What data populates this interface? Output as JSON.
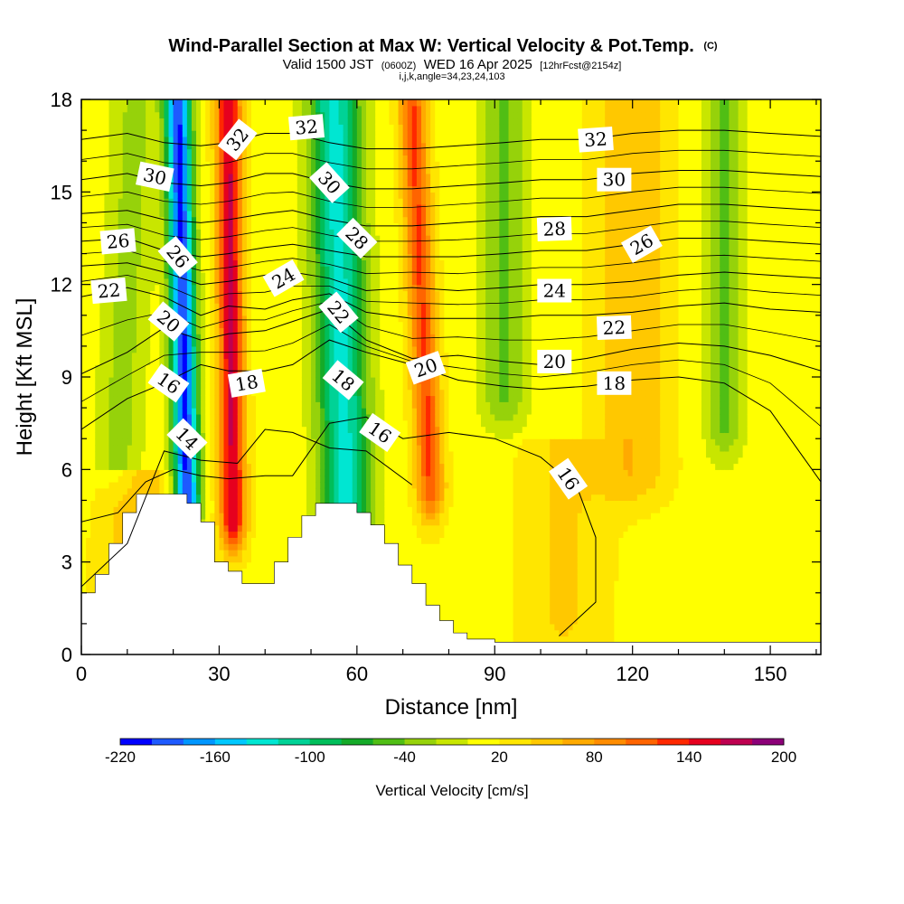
{
  "chart_data": {
    "type": "heatmap",
    "title": "Wind-Parallel Section at Max W: Vertical Velocity & Pot.Temp.",
    "title_suffix": "(C)",
    "subtitle": {
      "valid_prefix": "Valid 1500 JST",
      "utc": "(0600Z)",
      "date": "WED 16 Apr 2025",
      "forecast": "[12hrFcst@2154z]"
    },
    "subtitle2": "i,j,k,angle=34,23,24,103",
    "xlabel": "Distance [nm]",
    "ylabel": "Height [Kft MSL]",
    "xlim": [
      0,
      161
    ],
    "ylim": [
      0,
      18
    ],
    "x_ticks": [
      0,
      30,
      60,
      90,
      120,
      150
    ],
    "y_ticks": [
      0,
      3,
      6,
      9,
      12,
      15,
      18
    ],
    "colorbar": {
      "label": "Vertical Velocity [cm/s]",
      "range": [
        -220,
        200
      ],
      "step": 20,
      "tick_values": [
        -220,
        -160,
        -100,
        -40,
        20,
        80,
        140,
        200
      ],
      "tick_labels": [
        "-220",
        "-160",
        "-100",
        "-40",
        "20",
        "80",
        "140",
        "200"
      ],
      "colors": [
        "#0000ff",
        "#1e5aff",
        "#0096ff",
        "#00c8ff",
        "#00e6d2",
        "#00d296",
        "#00be5a",
        "#14aa28",
        "#50be14",
        "#96d20a",
        "#c8e600",
        "#ffff00",
        "#ffe600",
        "#ffc800",
        "#ffaa00",
        "#ff8c00",
        "#ff6400",
        "#ff2800",
        "#e6001e",
        "#be0050",
        "#8c0078"
      ]
    },
    "velocity_features": [
      {
        "x": 23,
        "x_top": 21,
        "z_bottom": 5.0,
        "z_top": 18,
        "w_peak": -215,
        "halfwidth": 2.8
      },
      {
        "x": 33,
        "x_top": 32,
        "z_bottom": 4.5,
        "z_top": 18,
        "w_peak": 150,
        "halfwidth": 2.8
      },
      {
        "x": 58,
        "x_top": 55,
        "z_bottom": 3.0,
        "z_top": 18,
        "w_peak": -140,
        "halfwidth": 5.5
      },
      {
        "x": 76,
        "x_top": 72,
        "z_bottom": 5.5,
        "z_top": 18,
        "w_peak": 110,
        "halfwidth": 3.0
      },
      {
        "x": 92,
        "x_top": 92,
        "z_bottom": 8.5,
        "z_top": 18,
        "w_peak": -55,
        "halfwidth": 5.0
      },
      {
        "x": 140,
        "x_top": 140,
        "z_bottom": 7.5,
        "z_top": 18,
        "w_peak": -55,
        "halfwidth": 4.0
      },
      {
        "x": 8,
        "x_top": 12,
        "z_bottom": 6.5,
        "z_top": 18,
        "w_peak": -40,
        "halfwidth": 5.0
      },
      {
        "x": 120,
        "x_top": 120,
        "z_bottom": 6.0,
        "z_top": 18,
        "w_peak": 45,
        "halfwidth": 8.0
      },
      {
        "x": 105,
        "x_top": 105,
        "z_bottom": 1.0,
        "z_top": 7.0,
        "w_peak": 30,
        "halfwidth": 10.0
      },
      {
        "x": 12,
        "x_top": 12,
        "z_bottom": 2.0,
        "z_top": 6.0,
        "w_peak": 45,
        "halfwidth": 8.0
      }
    ],
    "terrain": [
      {
        "x": 0,
        "z": 2.0
      },
      {
        "x": 3,
        "z": 2.6
      },
      {
        "x": 6,
        "z": 3.6
      },
      {
        "x": 9,
        "z": 4.6
      },
      {
        "x": 12,
        "z": 5.2
      },
      {
        "x": 15,
        "z": 5.2
      },
      {
        "x": 21,
        "z": 5.2
      },
      {
        "x": 23,
        "z": 4.9
      },
      {
        "x": 26,
        "z": 4.3
      },
      {
        "x": 29,
        "z": 3.0
      },
      {
        "x": 32,
        "z": 2.7
      },
      {
        "x": 35,
        "z": 2.3
      },
      {
        "x": 40,
        "z": 2.3
      },
      {
        "x": 42,
        "z": 3.0
      },
      {
        "x": 45,
        "z": 3.8
      },
      {
        "x": 48,
        "z": 4.5
      },
      {
        "x": 51,
        "z": 4.9
      },
      {
        "x": 57,
        "z": 4.9
      },
      {
        "x": 60,
        "z": 4.6
      },
      {
        "x": 63,
        "z": 4.2
      },
      {
        "x": 66,
        "z": 3.6
      },
      {
        "x": 69,
        "z": 2.9
      },
      {
        "x": 72,
        "z": 2.3
      },
      {
        "x": 75,
        "z": 1.6
      },
      {
        "x": 78,
        "z": 1.1
      },
      {
        "x": 81,
        "z": 0.7
      },
      {
        "x": 84,
        "z": 0.5
      },
      {
        "x": 90,
        "z": 0.4
      },
      {
        "x": 161,
        "z": 0.4
      }
    ],
    "isentropes": [
      {
        "theta": 14,
        "points": [
          [
            0,
            2.2
          ],
          [
            10,
            3.6
          ],
          [
            18,
            6.6
          ],
          [
            26,
            6.3
          ],
          [
            34,
            6.2
          ],
          [
            40,
            7.3
          ],
          [
            46,
            7.2
          ],
          [
            54,
            6.7
          ],
          [
            62,
            6.6
          ],
          [
            72,
            5.5
          ]
        ]
      },
      {
        "theta": 16,
        "points": [
          [
            0,
            4.3
          ],
          [
            8,
            4.6
          ],
          [
            14,
            5.6
          ],
          [
            20,
            6.0
          ],
          [
            26,
            5.8
          ],
          [
            32,
            5.7
          ],
          [
            40,
            5.8
          ],
          [
            46,
            5.8
          ],
          [
            54,
            7.5
          ],
          [
            62,
            7.7
          ],
          [
            70,
            7.0
          ],
          [
            80,
            7.2
          ],
          [
            90,
            7.0
          ],
          [
            100,
            6.4
          ],
          [
            108,
            5.4
          ],
          [
            112,
            3.8
          ],
          [
            112,
            1.7
          ],
          [
            104,
            0.6
          ]
        ]
      },
      {
        "theta": 18,
        "points": [
          [
            0,
            7.3
          ],
          [
            10,
            8.3
          ],
          [
            18,
            8.8
          ],
          [
            26,
            9.4
          ],
          [
            32,
            9.2
          ],
          [
            40,
            9.2
          ],
          [
            46,
            9.4
          ],
          [
            54,
            10.2
          ],
          [
            62,
            9.8
          ],
          [
            72,
            9.4
          ],
          [
            82,
            8.9
          ],
          [
            92,
            8.7
          ],
          [
            100,
            8.6
          ],
          [
            110,
            8.7
          ],
          [
            120,
            8.9
          ],
          [
            130,
            9.0
          ],
          [
            140,
            8.8
          ],
          [
            150,
            7.9
          ],
          [
            161,
            5.6
          ]
        ]
      },
      {
        "theta": 20,
        "points": [
          [
            0,
            9.1
          ],
          [
            10,
            9.8
          ],
          [
            18,
            10.6
          ],
          [
            26,
            10.2
          ],
          [
            32,
            10.4
          ],
          [
            40,
            10.5
          ],
          [
            46,
            10.8
          ],
          [
            54,
            11.2
          ],
          [
            62,
            10.2
          ],
          [
            72,
            9.6
          ],
          [
            82,
            9.7
          ],
          [
            92,
            9.5
          ],
          [
            100,
            9.4
          ],
          [
            110,
            9.6
          ],
          [
            120,
            9.9
          ],
          [
            130,
            10.1
          ],
          [
            140,
            10.0
          ],
          [
            150,
            9.7
          ],
          [
            161,
            9.2
          ]
        ]
      },
      {
        "theta": 22,
        "points": [
          [
            0,
            11.6
          ],
          [
            10,
            11.9
          ],
          [
            18,
            11.6
          ],
          [
            26,
            11.0
          ],
          [
            32,
            11.3
          ],
          [
            40,
            11.2
          ],
          [
            46,
            11.5
          ],
          [
            54,
            11.7
          ],
          [
            62,
            11.1
          ],
          [
            72,
            10.9
          ],
          [
            82,
            10.9
          ],
          [
            92,
            10.9
          ],
          [
            100,
            11.0
          ],
          [
            110,
            11.0
          ],
          [
            120,
            11.1
          ],
          [
            130,
            11.3
          ],
          [
            140,
            11.4
          ],
          [
            150,
            11.2
          ],
          [
            161,
            11.1
          ]
        ]
      },
      {
        "theta": 24,
        "points": [
          [
            0,
            12.6
          ],
          [
            10,
            12.7
          ],
          [
            18,
            12.4
          ],
          [
            26,
            12.0
          ],
          [
            32,
            12.1
          ],
          [
            40,
            12.3
          ],
          [
            46,
            12.4
          ],
          [
            54,
            12.2
          ],
          [
            62,
            11.8
          ],
          [
            72,
            11.9
          ],
          [
            82,
            11.8
          ],
          [
            92,
            11.9
          ],
          [
            100,
            12.0
          ],
          [
            110,
            12.0
          ],
          [
            120,
            12.1
          ],
          [
            130,
            12.3
          ],
          [
            140,
            12.4
          ],
          [
            150,
            12.3
          ],
          [
            161,
            12.2
          ]
        ]
      },
      {
        "theta": 26,
        "points": [
          [
            0,
            13.4
          ],
          [
            10,
            13.5
          ],
          [
            18,
            13.1
          ],
          [
            26,
            12.9
          ],
          [
            32,
            13.0
          ],
          [
            40,
            13.2
          ],
          [
            46,
            13.3
          ],
          [
            54,
            13.1
          ],
          [
            62,
            12.9
          ],
          [
            72,
            12.9
          ],
          [
            82,
            12.9
          ],
          [
            92,
            13.0
          ],
          [
            100,
            13.1
          ],
          [
            110,
            13.1
          ],
          [
            120,
            13.3
          ],
          [
            130,
            13.5
          ],
          [
            140,
            13.5
          ],
          [
            150,
            13.4
          ],
          [
            161,
            13.3
          ]
        ]
      },
      {
        "theta": 28,
        "points": [
          [
            0,
            14.3
          ],
          [
            10,
            14.4
          ],
          [
            18,
            14.1
          ],
          [
            26,
            14.0
          ],
          [
            32,
            14.1
          ],
          [
            40,
            14.3
          ],
          [
            46,
            14.4
          ],
          [
            54,
            14.1
          ],
          [
            62,
            13.9
          ],
          [
            72,
            13.9
          ],
          [
            82,
            14.0
          ],
          [
            92,
            14.1
          ],
          [
            100,
            14.2
          ],
          [
            110,
            14.2
          ],
          [
            120,
            14.4
          ],
          [
            130,
            14.6
          ],
          [
            140,
            14.6
          ],
          [
            150,
            14.5
          ],
          [
            161,
            14.4
          ]
        ]
      },
      {
        "theta": 30,
        "points": [
          [
            0,
            15.4
          ],
          [
            10,
            15.6
          ],
          [
            18,
            15.3
          ],
          [
            26,
            15.2
          ],
          [
            32,
            15.3
          ],
          [
            40,
            15.6
          ],
          [
            46,
            15.6
          ],
          [
            54,
            15.3
          ],
          [
            62,
            15.1
          ],
          [
            72,
            15.1
          ],
          [
            82,
            15.2
          ],
          [
            92,
            15.3
          ],
          [
            100,
            15.4
          ],
          [
            110,
            15.4
          ],
          [
            120,
            15.6
          ],
          [
            130,
            15.7
          ],
          [
            140,
            15.7
          ],
          [
            150,
            15.6
          ],
          [
            161,
            15.5
          ]
        ]
      },
      {
        "theta": 32,
        "points": [
          [
            0,
            16.7
          ],
          [
            10,
            16.9
          ],
          [
            18,
            16.6
          ],
          [
            26,
            16.5
          ],
          [
            32,
            16.6
          ],
          [
            40,
            16.9
          ],
          [
            46,
            16.9
          ],
          [
            54,
            16.6
          ],
          [
            62,
            16.4
          ],
          [
            72,
            16.4
          ],
          [
            82,
            16.5
          ],
          [
            92,
            16.6
          ],
          [
            100,
            16.7
          ],
          [
            110,
            16.7
          ],
          [
            120,
            16.9
          ],
          [
            130,
            17.0
          ],
          [
            140,
            17.0
          ],
          [
            150,
            16.9
          ],
          [
            161,
            16.8
          ]
        ]
      }
    ],
    "contour_labels": [
      {
        "text": "32",
        "x": 34,
        "z": 16.7,
        "angle": -52
      },
      {
        "text": "32",
        "x": 49,
        "z": 17.1,
        "angle": -5
      },
      {
        "text": "32",
        "x": 112,
        "z": 16.7,
        "angle": -4
      },
      {
        "text": "30",
        "x": 16,
        "z": 15.5,
        "angle": 12
      },
      {
        "text": "30",
        "x": 54,
        "z": 15.3,
        "angle": 48
      },
      {
        "text": "30",
        "x": 116,
        "z": 15.4,
        "angle": 0
      },
      {
        "text": "28",
        "x": 60,
        "z": 13.5,
        "angle": 45
      },
      {
        "text": "28",
        "x": 103,
        "z": 13.8,
        "angle": -2
      },
      {
        "text": "26",
        "x": 8,
        "z": 13.4,
        "angle": -5
      },
      {
        "text": "26",
        "x": 21,
        "z": 12.9,
        "angle": 50
      },
      {
        "text": "26",
        "x": 122,
        "z": 13.3,
        "angle": -30
      },
      {
        "text": "24",
        "x": 44,
        "z": 12.2,
        "angle": -30
      },
      {
        "text": "24",
        "x": 103,
        "z": 11.8,
        "angle": 0
      },
      {
        "text": "22",
        "x": 6,
        "z": 11.8,
        "angle": -5
      },
      {
        "text": "22",
        "x": 56,
        "z": 11.1,
        "angle": 50
      },
      {
        "text": "22",
        "x": 116,
        "z": 10.6,
        "angle": -2
      },
      {
        "text": "20",
        "x": 19,
        "z": 10.8,
        "angle": 40
      },
      {
        "text": "20",
        "x": 75,
        "z": 9.3,
        "angle": -20
      },
      {
        "text": "20",
        "x": 103,
        "z": 9.5,
        "angle": 0
      },
      {
        "text": "18",
        "x": 36,
        "z": 8.8,
        "angle": -10
      },
      {
        "text": "18",
        "x": 57,
        "z": 8.9,
        "angle": 40
      },
      {
        "text": "18",
        "x": 116,
        "z": 8.8,
        "angle": 0
      },
      {
        "text": "16",
        "x": 19,
        "z": 8.8,
        "angle": 35
      },
      {
        "text": "16",
        "x": 65,
        "z": 7.2,
        "angle": 35
      },
      {
        "text": "16",
        "x": 106,
        "z": 5.7,
        "angle": 55
      },
      {
        "text": "14",
        "x": 23,
        "z": 7.0,
        "angle": 45
      }
    ]
  }
}
